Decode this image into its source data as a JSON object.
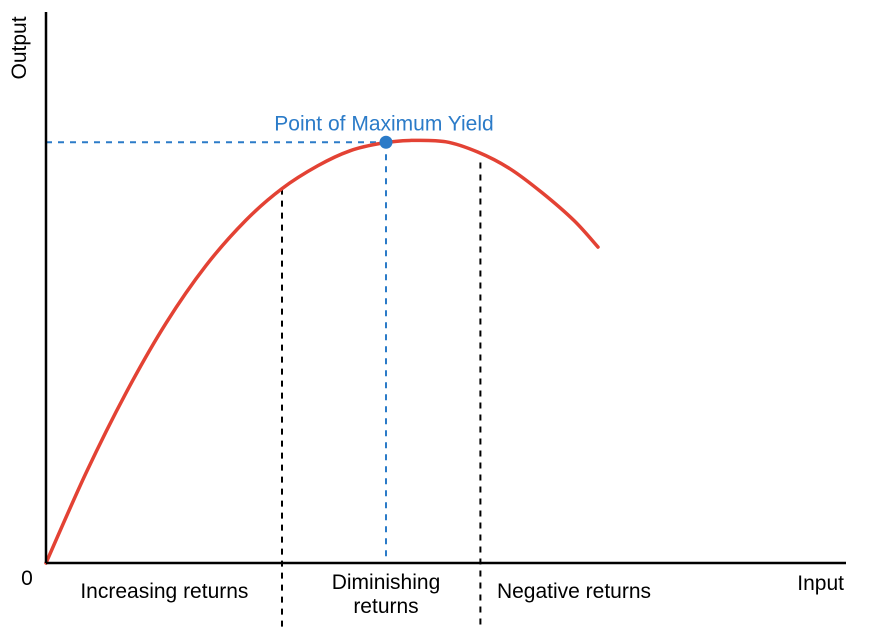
{
  "chart_data": {
    "type": "line",
    "title": "",
    "xlabel": "Input",
    "ylabel": "Output",
    "origin_label": "0",
    "xlim": [
      0,
      100
    ],
    "ylim": [
      0,
      100
    ],
    "grid": false,
    "series": [
      {
        "x": [
          0,
          5,
          10,
          15,
          20,
          25,
          29.5,
          34,
          38,
          42,
          45.5,
          50,
          54,
          58,
          62,
          66,
          69
        ],
        "y": [
          0,
          20,
          37.8,
          53.3,
          66.1,
          76.2,
          83.2,
          88.3,
          91.6,
          93.3,
          93.9,
          93.6,
          91.3,
          87.6,
          82.3,
          76.1,
          70.2
        ],
        "color": "#e34234"
      }
    ],
    "guides": {
      "max_point": {
        "x": 42.5,
        "y": 93.5,
        "label": "Point of Maximum Yield",
        "color": "#2b7bc8"
      },
      "boundaries": [
        {
          "x": 29.5,
          "y": 83.2
        },
        {
          "x": 54.3,
          "y": 89.0
        }
      ]
    },
    "regions": [
      {
        "lines": [
          "Increasing returns"
        ],
        "x": 14.8
      },
      {
        "lines": [
          "Diminishing",
          "returns"
        ],
        "x": 42.5
      },
      {
        "lines": [
          "Negative returns"
        ],
        "x": 66.0
      }
    ],
    "colors": {
      "curve": "#e34234",
      "accent": "#2b7bc8",
      "axis": "#000000"
    }
  }
}
